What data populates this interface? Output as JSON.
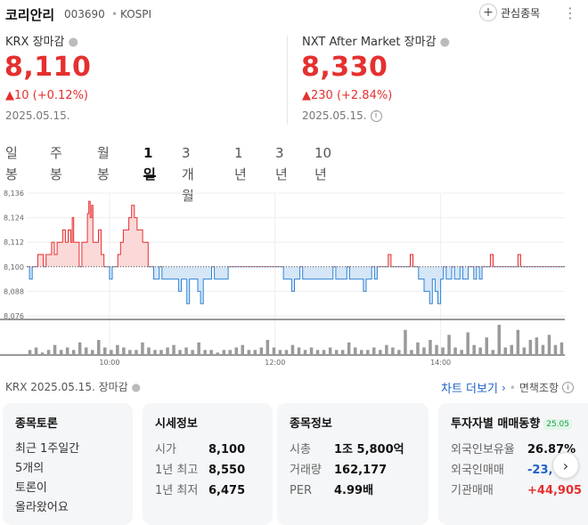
{
  "header": {
    "name": "코리안리",
    "code": "003690",
    "market": "KOSPI",
    "favorite_label": "관심종목",
    "favorite_icon": "plus-icon",
    "more_icon": "more-vertical-icon"
  },
  "krx": {
    "label": "KRX 장마감",
    "price": "8,110",
    "change": "▲10 (+0.12%)",
    "date": "2025.05.15."
  },
  "nxt": {
    "label": "NXT After Market 장마감",
    "price": "8,330",
    "change": "▲230 (+2.84%)",
    "date": "2025.05.15."
  },
  "tabs": [
    {
      "label": "일봉"
    },
    {
      "label": "주봉"
    },
    {
      "label": "월봉"
    },
    {
      "label": "1일",
      "active": true
    },
    {
      "label": "3개월"
    },
    {
      "label": "1년"
    },
    {
      "label": "3년"
    },
    {
      "label": "10년"
    }
  ],
  "chart_data": {
    "type": "area",
    "baseline": 8100,
    "ylim": [
      8076,
      8136
    ],
    "yticks": [
      "8,136",
      "8,124",
      "8,112",
      "8,100",
      "8,088",
      "8,076"
    ],
    "xticks": [
      {
        "label": "10:00",
        "t": 60
      },
      {
        "label": "12:00",
        "t": 180
      },
      {
        "label": "14:00",
        "t": 300
      }
    ],
    "x_range": [
      0,
      390
    ],
    "colors": {
      "up": "#e5302f",
      "up_fill": "#fbd9d9",
      "down": "#2f83d6",
      "down_fill": "#d5e6f7"
    },
    "price_points": [
      [
        0,
        8100
      ],
      [
        2,
        8094
      ],
      [
        4,
        8100
      ],
      [
        6,
        8100
      ],
      [
        8,
        8106
      ],
      [
        10,
        8106
      ],
      [
        12,
        8100
      ],
      [
        14,
        8106
      ],
      [
        16,
        8106
      ],
      [
        18,
        8112
      ],
      [
        20,
        8106
      ],
      [
        22,
        8112
      ],
      [
        24,
        8112
      ],
      [
        26,
        8118
      ],
      [
        28,
        8112
      ],
      [
        30,
        8118
      ],
      [
        32,
        8112
      ],
      [
        33,
        8124
      ],
      [
        34,
        8112
      ],
      [
        36,
        8112
      ],
      [
        38,
        8100
      ],
      [
        40,
        8112
      ],
      [
        42,
        8112
      ],
      [
        44,
        8126
      ],
      [
        45,
        8132
      ],
      [
        46,
        8124
      ],
      [
        47,
        8130
      ],
      [
        48,
        8112
      ],
      [
        50,
        8112
      ],
      [
        52,
        8118
      ],
      [
        54,
        8106
      ],
      [
        56,
        8100
      ],
      [
        58,
        8100
      ],
      [
        60,
        8094
      ],
      [
        62,
        8100
      ],
      [
        64,
        8100
      ],
      [
        66,
        8106
      ],
      [
        68,
        8112
      ],
      [
        70,
        8118
      ],
      [
        72,
        8118
      ],
      [
        74,
        8124
      ],
      [
        76,
        8130
      ],
      [
        78,
        8124
      ],
      [
        80,
        8118
      ],
      [
        82,
        8118
      ],
      [
        84,
        8112
      ],
      [
        86,
        8112
      ],
      [
        88,
        8100
      ],
      [
        90,
        8100
      ],
      [
        92,
        8094
      ],
      [
        94,
        8094
      ],
      [
        96,
        8100
      ],
      [
        98,
        8094
      ],
      [
        100,
        8094
      ],
      [
        102,
        8094
      ],
      [
        104,
        8094
      ],
      [
        106,
        8094
      ],
      [
        108,
        8094
      ],
      [
        110,
        8088
      ],
      [
        112,
        8094
      ],
      [
        114,
        8094
      ],
      [
        116,
        8082
      ],
      [
        118,
        8094
      ],
      [
        120,
        8094
      ],
      [
        122,
        8094
      ],
      [
        124,
        8088
      ],
      [
        126,
        8082
      ],
      [
        128,
        8094
      ],
      [
        130,
        8094
      ],
      [
        132,
        8094
      ],
      [
        134,
        8100
      ],
      [
        136,
        8094
      ],
      [
        138,
        8094
      ],
      [
        140,
        8094
      ],
      [
        142,
        8094
      ],
      [
        144,
        8094
      ],
      [
        146,
        8100
      ],
      [
        148,
        8100
      ],
      [
        150,
        8100
      ],
      [
        152,
        8100
      ],
      [
        154,
        8100
      ],
      [
        156,
        8100
      ],
      [
        158,
        8100
      ],
      [
        160,
        8100
      ],
      [
        162,
        8100
      ],
      [
        164,
        8100
      ],
      [
        166,
        8100
      ],
      [
        168,
        8100
      ],
      [
        170,
        8100
      ],
      [
        172,
        8100
      ],
      [
        174,
        8100
      ],
      [
        176,
        8100
      ],
      [
        178,
        8100
      ],
      [
        180,
        8100
      ],
      [
        182,
        8100
      ],
      [
        184,
        8100
      ],
      [
        186,
        8094
      ],
      [
        188,
        8094
      ],
      [
        190,
        8094
      ],
      [
        192,
        8088
      ],
      [
        194,
        8094
      ],
      [
        196,
        8094
      ],
      [
        198,
        8100
      ],
      [
        200,
        8094
      ],
      [
        202,
        8094
      ],
      [
        204,
        8094
      ],
      [
        206,
        8094
      ],
      [
        208,
        8094
      ],
      [
        210,
        8094
      ],
      [
        212,
        8094
      ],
      [
        214,
        8094
      ],
      [
        216,
        8094
      ],
      [
        218,
        8094
      ],
      [
        220,
        8094
      ],
      [
        222,
        8100
      ],
      [
        224,
        8094
      ],
      [
        226,
        8094
      ],
      [
        228,
        8094
      ],
      [
        230,
        8094
      ],
      [
        232,
        8100
      ],
      [
        234,
        8094
      ],
      [
        236,
        8094
      ],
      [
        238,
        8094
      ],
      [
        240,
        8094
      ],
      [
        242,
        8094
      ],
      [
        244,
        8088
      ],
      [
        246,
        8094
      ],
      [
        248,
        8094
      ],
      [
        250,
        8100
      ],
      [
        252,
        8094
      ],
      [
        254,
        8100
      ],
      [
        256,
        8100
      ],
      [
        258,
        8100
      ],
      [
        260,
        8100
      ],
      [
        262,
        8106
      ],
      [
        264,
        8100
      ],
      [
        266,
        8100
      ],
      [
        268,
        8100
      ],
      [
        270,
        8100
      ],
      [
        272,
        8100
      ],
      [
        274,
        8100
      ],
      [
        276,
        8100
      ],
      [
        278,
        8106
      ],
      [
        280,
        8100
      ],
      [
        282,
        8100
      ],
      [
        284,
        8094
      ],
      [
        286,
        8094
      ],
      [
        288,
        8088
      ],
      [
        290,
        8088
      ],
      [
        292,
        8082
      ],
      [
        294,
        8094
      ],
      [
        296,
        8088
      ],
      [
        298,
        8082
      ],
      [
        300,
        8094
      ],
      [
        302,
        8100
      ],
      [
        304,
        8094
      ],
      [
        306,
        8094
      ],
      [
        308,
        8100
      ],
      [
        310,
        8094
      ],
      [
        312,
        8094
      ],
      [
        314,
        8100
      ],
      [
        316,
        8094
      ],
      [
        318,
        8094
      ],
      [
        320,
        8100
      ],
      [
        322,
        8100
      ],
      [
        324,
        8094
      ],
      [
        326,
        8100
      ],
      [
        328,
        8094
      ],
      [
        330,
        8100
      ],
      [
        332,
        8100
      ],
      [
        334,
        8100
      ],
      [
        336,
        8106
      ],
      [
        338,
        8100
      ],
      [
        340,
        8100
      ],
      [
        342,
        8100
      ],
      [
        344,
        8100
      ],
      [
        346,
        8100
      ],
      [
        348,
        8100
      ],
      [
        350,
        8100
      ],
      [
        352,
        8100
      ],
      [
        354,
        8100
      ],
      [
        356,
        8106
      ],
      [
        358,
        8100
      ],
      [
        360,
        8100
      ],
      [
        362,
        8100
      ],
      [
        364,
        8100
      ],
      [
        366,
        8100
      ],
      [
        368,
        8100
      ],
      [
        370,
        8100
      ],
      [
        372,
        8100
      ],
      [
        374,
        8100
      ],
      [
        376,
        8100
      ],
      [
        378,
        8100
      ],
      [
        380,
        8100
      ],
      [
        382,
        8100
      ],
      [
        384,
        8100
      ],
      [
        386,
        8100
      ],
      [
        388,
        8100
      ]
    ],
    "volume": [
      2,
      3,
      1,
      2,
      4,
      2,
      3,
      2,
      5,
      3,
      2,
      6,
      3,
      2,
      4,
      3,
      2,
      2,
      5,
      3,
      2,
      2,
      3,
      4,
      2,
      3,
      2,
      5,
      2,
      2,
      1,
      2,
      2,
      3,
      4,
      2,
      2,
      3,
      6,
      3,
      2,
      2,
      4,
      3,
      2,
      3,
      2,
      2,
      3,
      2,
      2,
      5,
      3,
      2,
      2,
      3,
      2,
      4,
      3,
      2,
      10,
      2,
      5,
      3,
      6,
      4,
      3,
      8,
      3,
      2,
      9,
      4,
      3,
      7,
      2,
      12,
      3,
      4,
      10,
      3,
      6,
      7,
      4,
      8,
      4,
      5
    ]
  },
  "footer": {
    "left": "KRX  2025.05.15. 장마감",
    "chart_more": "차트 더보기",
    "disclaimer": "면책조항"
  },
  "cards": {
    "discussion": {
      "title": "종목토론",
      "lines": [
        "최근 1주일간",
        "5개의",
        "토론이",
        "올라왔어요"
      ]
    },
    "quote": {
      "title": "시세정보",
      "rows": [
        {
          "k": "시가",
          "v": "8,100"
        },
        {
          "k": "1년 최고",
          "v": "8,550"
        },
        {
          "k": "1년 최저",
          "v": "6,475"
        }
      ]
    },
    "info": {
      "title": "종목정보",
      "rows": [
        {
          "k": "시총",
          "v": "1조 5,800억"
        },
        {
          "k": "거래량",
          "v": "162,177"
        },
        {
          "k": "PER",
          "v": "4.99배"
        }
      ]
    },
    "investor": {
      "title": "투자자별 매매동향",
      "badge": "25.05",
      "rows": [
        {
          "k": "외국인보유율",
          "v": "26.87%",
          "color": "#111111"
        },
        {
          "k": "외국인매매",
          "v": "-23,",
          "color": "#1e62c7"
        },
        {
          "k": "기관매매",
          "v": "+44,905",
          "color": "#e5302f"
        }
      ]
    }
  }
}
